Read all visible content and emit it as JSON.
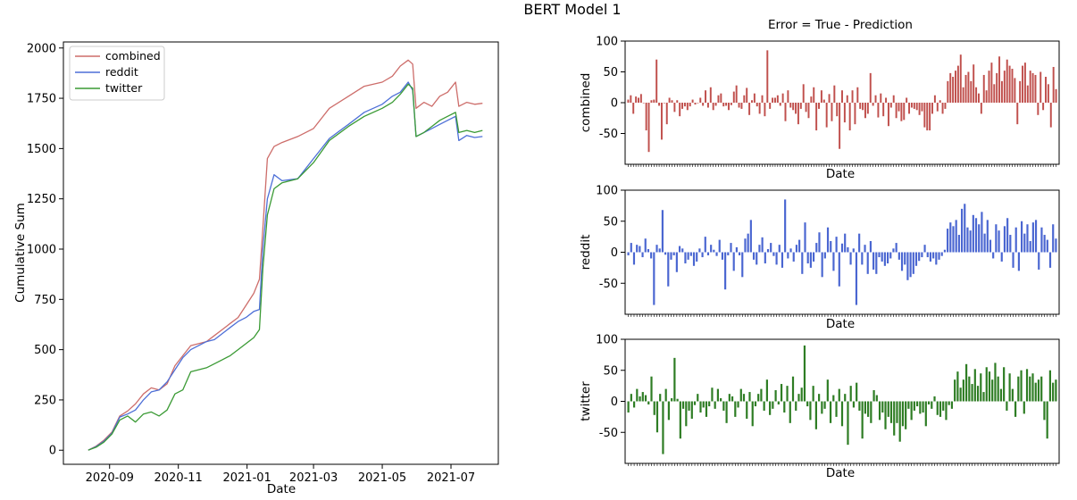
{
  "figure": {
    "suptitle": "BERT Model 1",
    "right_title": "Error = True - Prediction"
  },
  "colors": {
    "combined": "#cd6d6a",
    "reddit": "#4d6fd7",
    "twitter": "#3a9a34",
    "combined_bar": "#c0504d",
    "reddit_bar": "#4a66d1",
    "twitter_bar": "#2e7d24"
  },
  "chart_data": [
    {
      "type": "line",
      "xlabel": "Date",
      "ylabel": "Cumulative Sum",
      "ylim": [
        -70,
        2030
      ],
      "xlim": [
        "2020-07-22",
        "2021-08-12"
      ],
      "yticks": [
        0,
        250,
        500,
        750,
        1000,
        1250,
        1500,
        1750,
        2000
      ],
      "xticks": [
        "2020-09",
        "2020-11",
        "2021-01",
        "2021-03",
        "2021-05",
        "2021-07"
      ],
      "legend": {
        "position": "top-left",
        "entries": [
          "combined",
          "reddit",
          "twitter"
        ]
      },
      "series": [
        {
          "name": "combined",
          "color": "#cd6d6a",
          "points": [
            [
              "2020-08-13",
              0
            ],
            [
              "2020-08-20",
              20
            ],
            [
              "2020-08-27",
              50
            ],
            [
              "2020-09-03",
              90
            ],
            [
              "2020-09-10",
              170
            ],
            [
              "2020-09-17",
              195
            ],
            [
              "2020-09-24",
              230
            ],
            [
              "2020-10-01",
              280
            ],
            [
              "2020-10-08",
              310
            ],
            [
              "2020-10-15",
              300
            ],
            [
              "2020-10-22",
              330
            ],
            [
              "2020-10-29",
              420
            ],
            [
              "2020-11-05",
              470
            ],
            [
              "2020-11-12",
              520
            ],
            [
              "2020-11-19",
              530
            ],
            [
              "2020-11-26",
              540
            ],
            [
              "2020-12-03",
              570
            ],
            [
              "2020-12-10",
              600
            ],
            [
              "2020-12-17",
              630
            ],
            [
              "2020-12-24",
              660
            ],
            [
              "2020-12-31",
              720
            ],
            [
              "2021-01-07",
              780
            ],
            [
              "2021-01-12",
              850
            ],
            [
              "2021-01-15",
              1100
            ],
            [
              "2021-01-19",
              1450
            ],
            [
              "2021-01-25",
              1510
            ],
            [
              "2021-02-01",
              1530
            ],
            [
              "2021-02-15",
              1560
            ],
            [
              "2021-03-01",
              1600
            ],
            [
              "2021-03-15",
              1700
            ],
            [
              "2021-04-01",
              1760
            ],
            [
              "2021-04-15",
              1810
            ],
            [
              "2021-05-01",
              1830
            ],
            [
              "2021-05-10",
              1860
            ],
            [
              "2021-05-17",
              1910
            ],
            [
              "2021-05-24",
              1940
            ],
            [
              "2021-05-28",
              1920
            ],
            [
              "2021-05-31",
              1700
            ],
            [
              "2021-06-07",
              1730
            ],
            [
              "2021-06-14",
              1710
            ],
            [
              "2021-06-21",
              1760
            ],
            [
              "2021-06-28",
              1780
            ],
            [
              "2021-07-05",
              1830
            ],
            [
              "2021-07-08",
              1710
            ],
            [
              "2021-07-15",
              1730
            ],
            [
              "2021-07-22",
              1720
            ],
            [
              "2021-07-29",
              1725
            ]
          ]
        },
        {
          "name": "reddit",
          "color": "#4d6fd7",
          "points": [
            [
              "2020-08-13",
              0
            ],
            [
              "2020-08-20",
              18
            ],
            [
              "2020-08-27",
              45
            ],
            [
              "2020-09-03",
              85
            ],
            [
              "2020-09-10",
              165
            ],
            [
              "2020-09-17",
              180
            ],
            [
              "2020-09-24",
              200
            ],
            [
              "2020-10-01",
              250
            ],
            [
              "2020-10-08",
              290
            ],
            [
              "2020-10-15",
              300
            ],
            [
              "2020-10-22",
              340
            ],
            [
              "2020-10-29",
              400
            ],
            [
              "2020-11-05",
              460
            ],
            [
              "2020-11-12",
              500
            ],
            [
              "2020-11-19",
              520
            ],
            [
              "2020-11-26",
              540
            ],
            [
              "2020-12-03",
              550
            ],
            [
              "2020-12-10",
              580
            ],
            [
              "2020-12-17",
              610
            ],
            [
              "2020-12-24",
              640
            ],
            [
              "2020-12-31",
              660
            ],
            [
              "2021-01-07",
              690
            ],
            [
              "2021-01-12",
              700
            ],
            [
              "2021-01-15",
              1000
            ],
            [
              "2021-01-19",
              1250
            ],
            [
              "2021-01-25",
              1370
            ],
            [
              "2021-02-01",
              1340
            ],
            [
              "2021-02-15",
              1350
            ],
            [
              "2021-03-01",
              1450
            ],
            [
              "2021-03-15",
              1550
            ],
            [
              "2021-04-01",
              1620
            ],
            [
              "2021-04-15",
              1680
            ],
            [
              "2021-05-01",
              1720
            ],
            [
              "2021-05-10",
              1760
            ],
            [
              "2021-05-17",
              1780
            ],
            [
              "2021-05-24",
              1830
            ],
            [
              "2021-05-28",
              1790
            ],
            [
              "2021-05-31",
              1560
            ],
            [
              "2021-06-07",
              1580
            ],
            [
              "2021-06-14",
              1600
            ],
            [
              "2021-06-21",
              1620
            ],
            [
              "2021-06-28",
              1640
            ],
            [
              "2021-07-05",
              1660
            ],
            [
              "2021-07-08",
              1540
            ],
            [
              "2021-07-15",
              1565
            ],
            [
              "2021-07-22",
              1555
            ],
            [
              "2021-07-29",
              1560
            ]
          ]
        },
        {
          "name": "twitter",
          "color": "#3a9a34",
          "points": [
            [
              "2020-08-13",
              0
            ],
            [
              "2020-08-20",
              15
            ],
            [
              "2020-08-27",
              40
            ],
            [
              "2020-09-03",
              80
            ],
            [
              "2020-09-10",
              150
            ],
            [
              "2020-09-17",
              170
            ],
            [
              "2020-09-24",
              140
            ],
            [
              "2020-10-01",
              180
            ],
            [
              "2020-10-08",
              190
            ],
            [
              "2020-10-15",
              170
            ],
            [
              "2020-10-22",
              200
            ],
            [
              "2020-10-29",
              280
            ],
            [
              "2020-11-05",
              300
            ],
            [
              "2020-11-12",
              390
            ],
            [
              "2020-11-19",
              400
            ],
            [
              "2020-11-26",
              410
            ],
            [
              "2020-12-03",
              430
            ],
            [
              "2020-12-10",
              450
            ],
            [
              "2020-12-17",
              470
            ],
            [
              "2020-12-24",
              500
            ],
            [
              "2020-12-31",
              530
            ],
            [
              "2021-01-07",
              560
            ],
            [
              "2021-01-12",
              600
            ],
            [
              "2021-01-15",
              900
            ],
            [
              "2021-01-19",
              1170
            ],
            [
              "2021-01-25",
              1300
            ],
            [
              "2021-02-01",
              1330
            ],
            [
              "2021-02-15",
              1350
            ],
            [
              "2021-03-01",
              1430
            ],
            [
              "2021-03-15",
              1540
            ],
            [
              "2021-04-01",
              1610
            ],
            [
              "2021-04-15",
              1660
            ],
            [
              "2021-05-01",
              1700
            ],
            [
              "2021-05-10",
              1730
            ],
            [
              "2021-05-17",
              1770
            ],
            [
              "2021-05-24",
              1820
            ],
            [
              "2021-05-28",
              1800
            ],
            [
              "2021-05-31",
              1560
            ],
            [
              "2021-06-07",
              1580
            ],
            [
              "2021-06-14",
              1610
            ],
            [
              "2021-06-21",
              1640
            ],
            [
              "2021-06-28",
              1660
            ],
            [
              "2021-07-05",
              1680
            ],
            [
              "2021-07-08",
              1580
            ],
            [
              "2021-07-15",
              1590
            ],
            [
              "2021-07-22",
              1580
            ],
            [
              "2021-07-29",
              1590
            ]
          ]
        }
      ]
    },
    {
      "type": "bar",
      "title": "Error = True - Prediction",
      "xlabel": "Date",
      "ylabel": "combined",
      "ylim": [
        -100,
        100
      ],
      "yticks": [
        -50,
        0,
        50,
        100
      ],
      "color": "#c0504d",
      "values": [
        5,
        12,
        -18,
        10,
        8,
        14,
        0,
        -45,
        -80,
        4,
        5,
        70,
        -5,
        -60,
        0,
        -35,
        8,
        4,
        -15,
        4,
        -22,
        -10,
        -6,
        -12,
        -6,
        5,
        -3,
        0,
        8,
        -5,
        20,
        -8,
        25,
        -12,
        -5,
        12,
        15,
        -6,
        -5,
        -12,
        -4,
        18,
        28,
        -8,
        -10,
        12,
        24,
        -20,
        4,
        15,
        -6,
        -18,
        12,
        -22,
        85,
        -10,
        8,
        8,
        12,
        -5,
        15,
        -30,
        20,
        -8,
        -12,
        -18,
        -35,
        -10,
        30,
        -15,
        -25,
        10,
        25,
        -45,
        -10,
        20,
        5,
        -40,
        14,
        -30,
        28,
        -22,
        -75,
        20,
        -32,
        12,
        -45,
        20,
        -35,
        25,
        -10,
        -12,
        -25,
        -18,
        48,
        -5,
        12,
        -24,
        15,
        -22,
        8,
        -38,
        -8,
        12,
        -25,
        -14,
        -30,
        -28,
        8,
        -18,
        -8,
        -10,
        -12,
        -20,
        -14,
        -40,
        -45,
        -45,
        -18,
        12,
        -14,
        4,
        -18,
        -10,
        35,
        48,
        42,
        52,
        60,
        78,
        25,
        45,
        50,
        35,
        62,
        25,
        15,
        -18,
        45,
        20,
        52,
        65,
        30,
        48,
        75,
        35,
        52,
        70,
        60,
        55,
        40,
        -35,
        35,
        60,
        65,
        28,
        52,
        48,
        45,
        -20,
        50,
        -12,
        42,
        30,
        -40,
        58,
        22
      ]
    },
    {
      "type": "bar",
      "xlabel": "Date",
      "ylabel": "reddit",
      "ylim": [
        -100,
        100
      ],
      "yticks": [
        -50,
        0,
        50,
        100
      ],
      "color": "#4a66d1",
      "values": [
        -5,
        15,
        -20,
        12,
        10,
        -8,
        22,
        5,
        -10,
        -85,
        12,
        6,
        68,
        -4,
        -55,
        -12,
        -5,
        -32,
        10,
        6,
        -18,
        -12,
        -6,
        -22,
        -15,
        6,
        -8,
        25,
        -5,
        12,
        4,
        -6,
        20,
        -12,
        -60,
        -5,
        15,
        -30,
        8,
        -5,
        -40,
        22,
        30,
        52,
        -12,
        -20,
        12,
        24,
        -18,
        5,
        15,
        -6,
        -20,
        12,
        -25,
        85,
        -10,
        6,
        -15,
        12,
        20,
        -35,
        48,
        -18,
        -25,
        -15,
        15,
        32,
        -40,
        -10,
        40,
        18,
        -30,
        25,
        -55,
        14,
        30,
        8,
        -20,
        6,
        -85,
        30,
        -20,
        12,
        -35,
        18,
        -28,
        -35,
        -8,
        -15,
        -22,
        -18,
        -10,
        6,
        15,
        -12,
        -30,
        -20,
        -45,
        -40,
        -35,
        -22,
        -14,
        -8,
        12,
        -8,
        -15,
        -10,
        -20,
        -12,
        -6,
        4,
        38,
        48,
        42,
        52,
        28,
        70,
        78,
        40,
        35,
        60,
        55,
        45,
        65,
        30,
        52,
        20,
        -10,
        45,
        35,
        -15,
        42,
        55,
        28,
        -25,
        40,
        -30,
        50,
        30,
        45,
        18,
        48,
        52,
        -28,
        40,
        28,
        20,
        -25,
        45,
        22
      ]
    },
    {
      "type": "bar",
      "xlabel": "Date",
      "ylabel": "twitter",
      "ylim": [
        -100,
        100
      ],
      "yticks": [
        -50,
        0,
        50,
        100
      ],
      "color": "#2e7d24",
      "values": [
        -18,
        12,
        -10,
        20,
        8,
        15,
        10,
        -5,
        40,
        -22,
        -50,
        12,
        -85,
        20,
        -30,
        5,
        70,
        4,
        -60,
        -12,
        -40,
        -15,
        -28,
        -6,
        12,
        -18,
        -10,
        -25,
        -8,
        22,
        -12,
        20,
        5,
        -15,
        -35,
        12,
        8,
        -25,
        -10,
        20,
        12,
        -28,
        15,
        -40,
        -8,
        12,
        20,
        -15,
        35,
        -22,
        -12,
        18,
        -5,
        28,
        -18,
        25,
        -35,
        40,
        -15,
        12,
        22,
        90,
        -8,
        -30,
        25,
        -45,
        12,
        -20,
        -12,
        35,
        -35,
        10,
        -25,
        20,
        -40,
        12,
        -70,
        25,
        -10,
        30,
        -15,
        -60,
        -20,
        -25,
        -35,
        18,
        10,
        -30,
        -18,
        -45,
        -25,
        -35,
        -55,
        -35,
        -65,
        -40,
        -45,
        -12,
        -30,
        -15,
        -8,
        -20,
        -18,
        -40,
        -5,
        -12,
        8,
        -22,
        -25,
        -15,
        -30,
        -6,
        -12,
        35,
        48,
        22,
        35,
        60,
        40,
        28,
        52,
        25,
        45,
        15,
        55,
        48,
        35,
        62,
        40,
        20,
        55,
        -15,
        45,
        20,
        -25,
        40,
        50,
        -20,
        52,
        40,
        45,
        30,
        35,
        40,
        -30,
        -60,
        50,
        30,
        35
      ]
    }
  ]
}
